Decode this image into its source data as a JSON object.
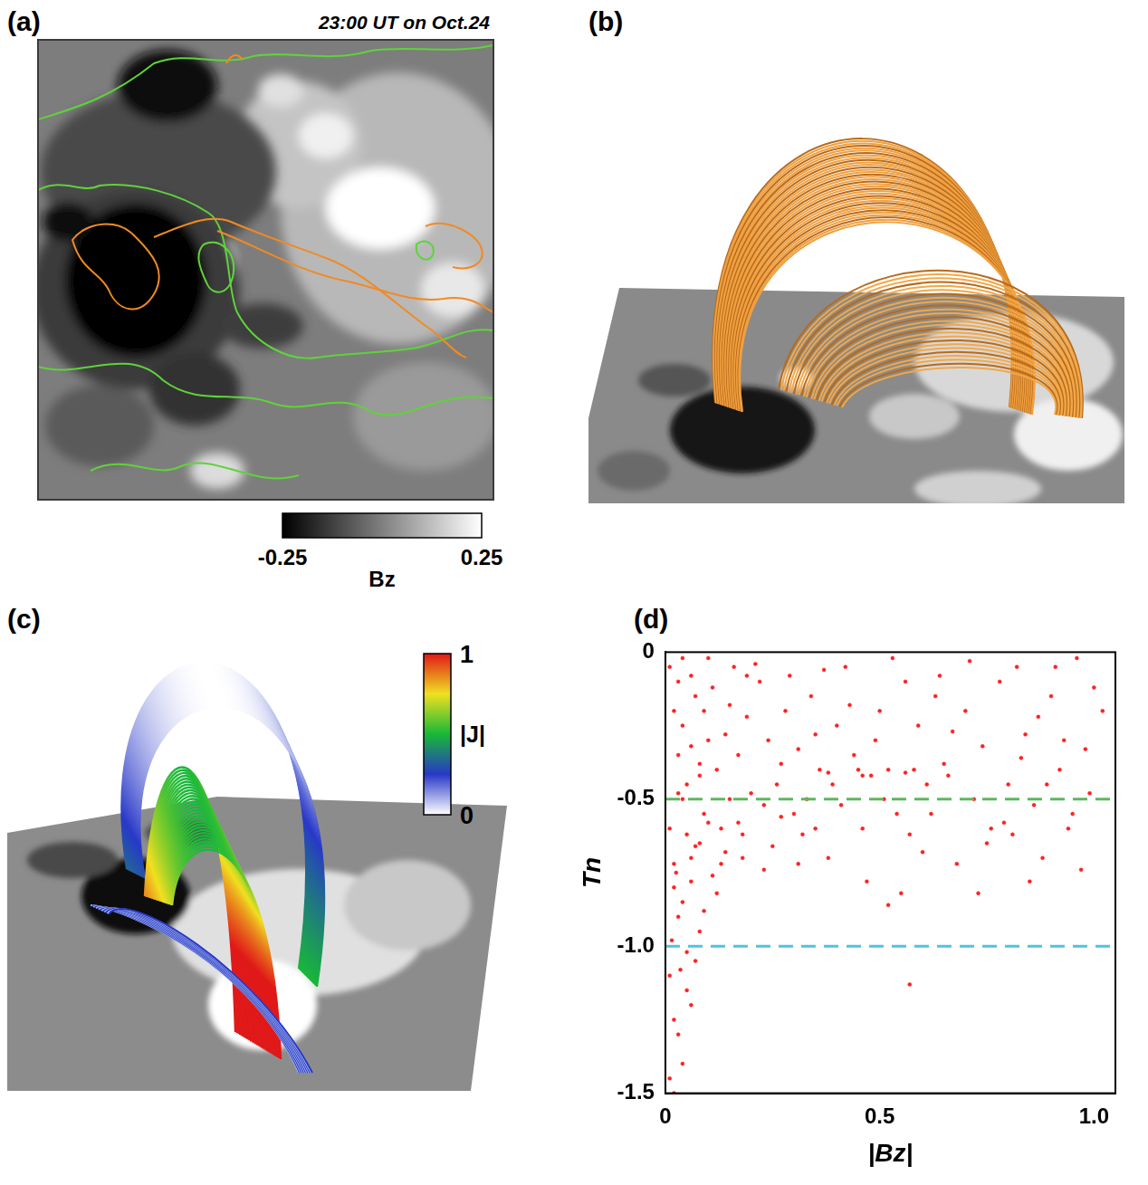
{
  "panels": [
    {
      "label": "(a)",
      "title": "23:00 UT on Oct.24",
      "colorbar": {
        "title": "Bz",
        "range": [
          -0.25,
          0.25
        ],
        "ticks": [
          -0.25,
          0.25
        ],
        "colors": [
          "#000000",
          "#ffffff"
        ]
      }
    },
    {
      "label": "(b)"
    },
    {
      "label": "(c)",
      "colorbar": {
        "title": "|J|",
        "range": [
          0,
          1
        ],
        "ticks": [
          0,
          1
        ],
        "colors": [
          "#ffffff",
          "#2838c8",
          "#18b838",
          "#f0e020",
          "#e01818"
        ]
      }
    }
  ],
  "chart_data": {
    "panel": "(d)",
    "type": "scatter",
    "x_label": "|Bz|",
    "y_label": "Tn",
    "color": "#ff2020",
    "marker": "dot",
    "grid": false,
    "xlim": [
      0,
      1.05
    ],
    "ylim": [
      -1.5,
      0
    ],
    "xticks": [
      0,
      0.5,
      {
        "value": 1,
        "label": "1.0"
      }
    ],
    "yticks": [
      0,
      -0.5,
      {
        "value": -1,
        "label": "-1.0"
      },
      -1.5
    ],
    "hlines": [
      {
        "value": -0.5,
        "color": "#5cb85c",
        "line_style": "dashed"
      },
      {
        "value": -1,
        "color": "#4fc3e0",
        "line_style": "dashed"
      }
    ],
    "x": [
      0.01,
      0.02,
      0.03,
      0.04,
      0.05,
      0.06,
      0.07,
      0.08,
      0.09,
      0.1,
      0.01,
      0.02,
      0.03,
      0.04,
      0.05,
      0.06,
      0.07,
      0.08,
      0.09,
      0.1,
      0.11,
      0.12,
      0.13,
      0.14,
      0.15,
      0.16,
      0.17,
      0.18,
      0.19,
      0.2,
      0.02,
      0.04,
      0.06,
      0.03,
      0.05,
      0.01,
      0.07,
      0.02,
      0.08,
      0.04,
      0.01,
      0.03,
      0.05,
      0.06,
      0.09,
      0.12,
      0.02,
      0.035,
      0.015,
      0.025,
      0.22,
      0.24,
      0.26,
      0.28,
      0.3,
      0.32,
      0.34,
      0.36,
      0.38,
      0.4,
      0.21,
      0.23,
      0.25,
      0.27,
      0.29,
      0.31,
      0.33,
      0.35,
      0.37,
      0.39,
      0.42,
      0.44,
      0.46,
      0.48,
      0.5,
      0.52,
      0.54,
      0.56,
      0.58,
      0.6,
      0.43,
      0.47,
      0.49,
      0.51,
      0.53,
      0.57,
      0.59,
      0.61,
      0.63,
      0.65,
      0.62,
      0.64,
      0.66,
      0.68,
      0.7,
      0.72,
      0.74,
      0.76,
      0.78,
      0.8,
      0.82,
      0.84,
      0.86,
      0.88,
      0.9,
      0.92,
      0.94,
      0.96,
      0.98,
      1.0,
      0.81,
      0.85,
      0.87,
      0.89,
      0.91,
      0.93,
      0.95,
      0.97,
      0.99,
      1.02,
      0.13,
      0.17,
      0.19,
      0.23,
      0.27,
      0.31,
      0.35,
      0.41,
      0.45,
      0.55,
      0.57,
      0.1,
      0.15,
      0.08,
      0.14,
      0.04,
      0.06,
      0.11,
      0.18,
      0.03,
      0.38,
      0.46,
      0.52,
      0.56,
      0.71,
      0.75,
      0.79,
      0.83,
      0.73,
      0.67
    ],
    "values": [
      -0.05,
      -0.2,
      -0.35,
      -0.5,
      -0.62,
      -0.7,
      -0.15,
      -0.42,
      -0.55,
      -0.3,
      -0.6,
      -0.72,
      -0.1,
      -0.25,
      -0.45,
      -0.08,
      -0.66,
      -0.38,
      -0.2,
      -0.58,
      -0.12,
      -0.4,
      -0.6,
      -0.28,
      -0.5,
      -0.05,
      -0.35,
      -0.7,
      -0.22,
      -0.48,
      -0.8,
      -0.85,
      -0.78,
      -0.9,
      -1.02,
      -1.1,
      -1.05,
      -1.25,
      -0.95,
      -1.4,
      -1.45,
      -1.3,
      -1.15,
      -1.2,
      -0.88,
      -0.82,
      -1.5,
      -1.08,
      -0.98,
      -0.75,
      -0.1,
      -0.3,
      -0.45,
      -0.2,
      -0.55,
      -0.62,
      -0.15,
      -0.4,
      -0.7,
      -0.25,
      -0.04,
      -0.52,
      -0.66,
      -0.38,
      -0.08,
      -0.33,
      -0.5,
      -0.6,
      -0.06,
      -0.45,
      -0.05,
      -0.35,
      -0.6,
      -0.42,
      -0.2,
      -0.86,
      -0.55,
      -0.1,
      -0.4,
      -0.68,
      -0.18,
      -0.78,
      -0.3,
      -0.5,
      -0.02,
      -0.62,
      -0.25,
      -0.45,
      -0.15,
      -0.38,
      -0.55,
      -0.08,
      -0.42,
      -0.72,
      -0.2,
      -0.5,
      -0.32,
      -0.6,
      -0.1,
      -0.45,
      -0.05,
      -0.28,
      -0.52,
      -0.7,
      -0.15,
      -0.4,
      -0.6,
      -0.02,
      -0.33,
      -0.12,
      -0.62,
      -0.78,
      -0.22,
      -0.45,
      -0.05,
      -0.3,
      -0.55,
      -0.74,
      -0.48,
      -0.2,
      -0.72,
      -0.58,
      -0.08,
      -0.74,
      -0.56,
      -0.72,
      -0.28,
      -0.52,
      -0.4,
      -0.82,
      -1.13,
      -0.02,
      -0.18,
      -0.65,
      -0.68,
      -0.02,
      -0.32,
      -0.76,
      -0.62,
      -0.48,
      -0.41,
      -0.42,
      -0.4,
      -0.41,
      -0.03,
      -0.65,
      -0.58,
      -0.36,
      -0.82,
      -0.27
    ]
  }
}
